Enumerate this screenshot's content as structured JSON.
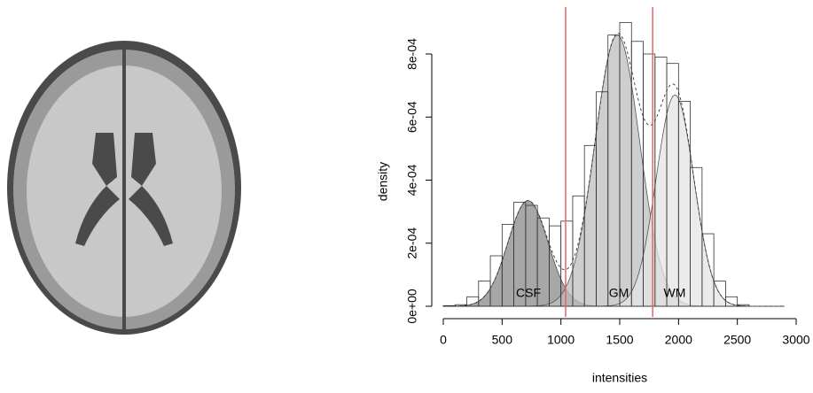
{
  "chart_data": {
    "type": "histogram",
    "x_label": "intensities",
    "y_label": "density",
    "bins": [
      0,
      100,
      200,
      300,
      400,
      500,
      600,
      700,
      800,
      900,
      1000,
      1100,
      1200,
      1300,
      1400,
      1500,
      1600,
      1700,
      1800,
      1900,
      2000,
      2100,
      2200,
      2300,
      2400,
      2500,
      2600
    ],
    "values": [
      2e-06,
      5e-06,
      3e-05,
      8e-05,
      0.00016,
      0.00026,
      0.00033,
      0.00032,
      0.00028,
      0.000255,
      0.00027,
      0.00035,
      0.00051,
      0.00068,
      0.00086,
      0.0009,
      0.00084,
      0.0008,
      0.00079,
      0.00077,
      0.00065,
      0.00044,
      0.00023,
      8e-05,
      3e-05,
      5e-06
    ],
    "components": [
      {
        "name": "CSF",
        "mean": 720,
        "sd": 170,
        "peak": 0.000335,
        "color": "#8a8a8a"
      },
      {
        "name": "GM",
        "mean": 1480,
        "sd": 190,
        "peak": 0.00086,
        "color": "#bdbdbd"
      },
      {
        "name": "WM",
        "mean": 1970,
        "sd": 160,
        "peak": 0.00067,
        "color": "#e4e4e4"
      }
    ],
    "thresholds": [
      1040,
      1780
    ],
    "threshold_color": "#e06666",
    "xlim": [
      0,
      3000
    ],
    "ylim": [
      0,
      0.0008
    ],
    "xticks": [
      0,
      500,
      1000,
      1500,
      2000,
      2500,
      3000
    ],
    "yticks": [
      {
        "value": 0,
        "label": "0e+00"
      },
      {
        "value": 0.0002,
        "label": "2e-04"
      },
      {
        "value": 0.0004,
        "label": "4e-04"
      },
      {
        "value": 0.0006,
        "label": "6e-04"
      },
      {
        "value": 0.0008,
        "label": "8e-04"
      }
    ]
  }
}
